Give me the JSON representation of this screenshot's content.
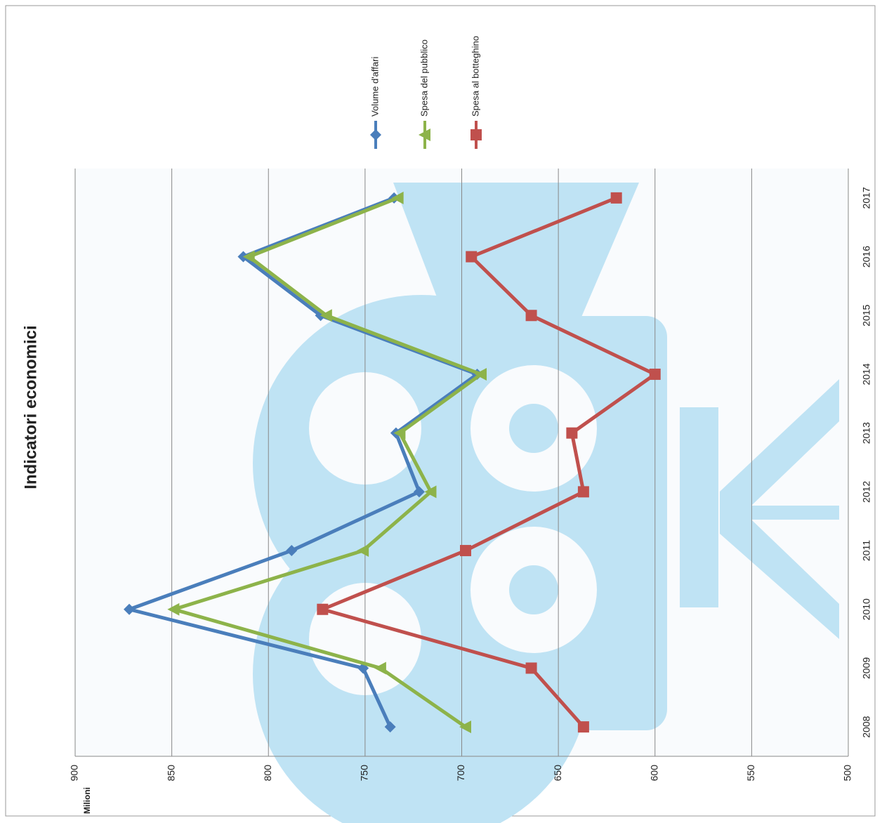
{
  "chart_data": {
    "type": "line",
    "title": "Indicatori economici",
    "y_label": "Milioni",
    "categories": [
      "2008",
      "2009",
      "2010",
      "2011",
      "2012",
      "2013",
      "2014",
      "2015",
      "2016",
      "2017"
    ],
    "series": [
      {
        "name": "Volume d'affari",
        "color": "#4a7ebb",
        "marker": "diamond",
        "values": [
          737,
          751,
          872,
          788,
          722,
          734,
          692,
          773,
          813,
          735
        ]
      },
      {
        "name": "Spesa del pubblico",
        "color": "#8db34a",
        "marker": "triangle",
        "values": [
          698,
          742,
          849,
          751,
          716,
          732,
          690,
          770,
          810,
          733
        ]
      },
      {
        "name": "Spesa al botteghino",
        "color": "#c0504d",
        "marker": "square",
        "values": [
          637,
          664,
          772,
          698,
          637,
          643,
          600,
          664,
          695,
          620
        ]
      }
    ],
    "ylim": [
      500,
      900
    ],
    "yticks": [
      500,
      550,
      600,
      650,
      700,
      750,
      800,
      850,
      900
    ],
    "grid": true,
    "legend": "right"
  }
}
